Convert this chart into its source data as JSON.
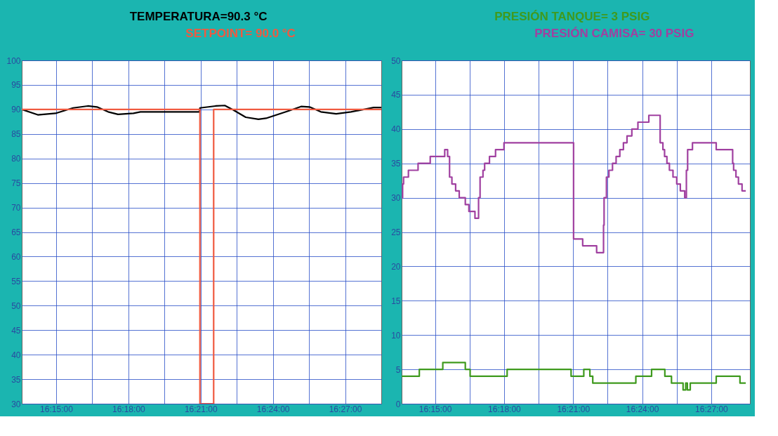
{
  "chart_data": [
    {
      "type": "line",
      "xlim": [
        16.2262,
        16.475
      ],
      "ylim": [
        30,
        100
      ],
      "xticks": [
        {
          "value": 16.25,
          "label": "16:15:00"
        },
        {
          "value": 16.275,
          "label": null
        },
        {
          "value": 16.3,
          "label": "16:18:00"
        },
        {
          "value": 16.325,
          "label": null
        },
        {
          "value": 16.35,
          "label": "16:21:00"
        },
        {
          "value": 16.375,
          "label": null
        },
        {
          "value": 16.4,
          "label": "16:24:00"
        },
        {
          "value": 16.425,
          "label": null
        },
        {
          "value": 16.45,
          "label": "16:27:00"
        }
      ],
      "yticks": [
        30,
        35,
        40,
        45,
        50,
        55,
        60,
        65,
        70,
        75,
        80,
        85,
        90,
        95,
        100
      ],
      "grid": true,
      "legend": false,
      "series": [
        {
          "name": "TEMPERATURA=90.3   °C",
          "color": "#000000",
          "x": [
            16.2262,
            16.2373,
            16.2495,
            16.2617,
            16.2719,
            16.2782,
            16.286,
            16.2928,
            16.3035,
            16.3083,
            16.3492,
            16.3495,
            16.3603,
            16.3667,
            16.3725,
            16.3812,
            16.39,
            16.3953,
            16.4108,
            16.4195,
            16.4253,
            16.4332,
            16.4438,
            16.454,
            16.4648,
            16.4697,
            16.475
          ],
          "values": [
            90,
            88.9,
            89.2,
            90.3,
            90.7,
            90.5,
            89.5,
            89,
            89.2,
            89.5,
            89.5,
            90.3,
            90.7,
            90.8,
            89.9,
            88.4,
            88,
            88.2,
            89.7,
            90.6,
            90.5,
            89.5,
            89.1,
            89.5,
            90.1,
            90.4,
            90.4
          ]
        },
        {
          "name": "SETPOINT= 90.0  °C",
          "color": "#f05a40",
          "x": [
            16.2262,
            16.3495,
            16.3495,
            16.359,
            16.359,
            16.475
          ],
          "values": [
            90,
            90,
            30,
            30,
            90,
            90
          ]
        }
      ]
    },
    {
      "type": "step",
      "xlim": [
        16.2258,
        16.478
      ],
      "ylim": [
        0,
        50
      ],
      "xticks": [
        {
          "value": 16.25,
          "label": "16:15:00"
        },
        {
          "value": 16.275,
          "label": null
        },
        {
          "value": 16.3,
          "label": "16:18:00"
        },
        {
          "value": 16.325,
          "label": null
        },
        {
          "value": 16.35,
          "label": "16:21:00"
        },
        {
          "value": 16.375,
          "label": null
        },
        {
          "value": 16.4,
          "label": "16:24:00"
        },
        {
          "value": 16.425,
          "label": null
        },
        {
          "value": 16.45,
          "label": "16:27:00"
        }
      ],
      "yticks": [
        0,
        5,
        10,
        15,
        20,
        25,
        30,
        35,
        40,
        45,
        50
      ],
      "grid": true,
      "legend": false,
      "series": [
        {
          "name": "PRESIÓN TANQUE=   3   PSIG",
          "color": "#3f9a1e",
          "x": [
            16.2258,
            16.2386,
            16.2556,
            16.2719,
            16.2754,
            16.3022,
            16.3485,
            16.3577,
            16.3621,
            16.3642,
            16.3954,
            16.4068,
            16.4164,
            16.4212,
            16.4296,
            16.4315,
            16.4327,
            16.4348,
            16.4536,
            16.4708,
            16.475
          ],
          "values": [
            4,
            5,
            6,
            5,
            4,
            5,
            4,
            5,
            4,
            3,
            4,
            5,
            4,
            3,
            2,
            3,
            2,
            3,
            4,
            3,
            3
          ]
        },
        {
          "name": "PRESIÓN CAMISA=   30  PSIG",
          "color": "#a040a0",
          "x": [
            16.2258,
            16.2265,
            16.2272,
            16.2307,
            16.2377,
            16.2465,
            16.257,
            16.2591,
            16.2605,
            16.2622,
            16.2649,
            16.2675,
            16.2719,
            16.2745,
            16.2789,
            16.2815,
            16.2826,
            16.2847,
            16.2859,
            16.2894,
            16.2938,
            16.2999,
            16.3503,
            16.3569,
            16.367,
            16.372,
            16.3724,
            16.3741,
            16.3759,
            16.3785,
            16.3811,
            16.3838,
            16.3864,
            16.389,
            16.3925,
            16.3969,
            16.4048,
            16.413,
            16.415,
            16.4162,
            16.4179,
            16.4197,
            16.4223,
            16.425,
            16.4276,
            16.4308,
            16.432,
            16.4329,
            16.4364,
            16.4536,
            16.4655,
            16.4662,
            16.4679,
            16.4697,
            16.4723,
            16.475
          ],
          "values": [
            30,
            32,
            33,
            34,
            35,
            36,
            37,
            36,
            33,
            32,
            31,
            30,
            29,
            28,
            27,
            30,
            33,
            34,
            35,
            36,
            37,
            38,
            24,
            23,
            22,
            26,
            30,
            33,
            34,
            35,
            36,
            37,
            38,
            39,
            40,
            41,
            42,
            38,
            37,
            36,
            35,
            34,
            33,
            32,
            31,
            30,
            34,
            37,
            38,
            37,
            35,
            34,
            33,
            32,
            31,
            31
          ]
        }
      ]
    }
  ]
}
